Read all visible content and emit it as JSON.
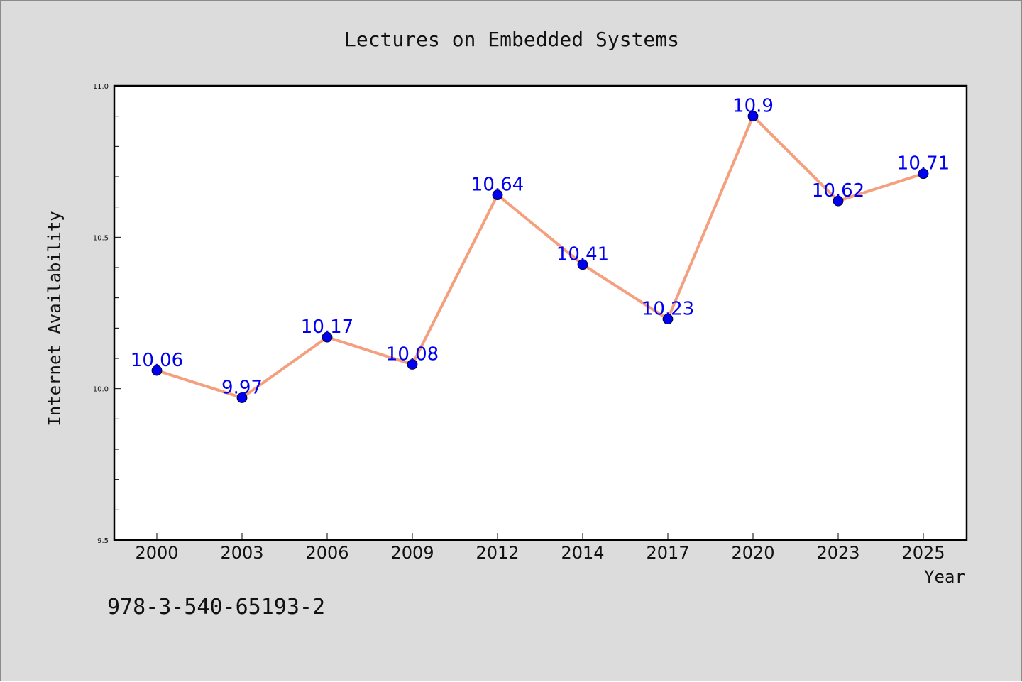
{
  "chart_data": {
    "type": "line",
    "title": "Lectures on Embedded Systems",
    "xlabel": "Year",
    "ylabel": "Internet Availability",
    "categories": [
      "2000",
      "2003",
      "2006",
      "2009",
      "2012",
      "2014",
      "2017",
      "2020",
      "2023",
      "2025"
    ],
    "series": [
      {
        "values": [
          10.06,
          9.97,
          10.17,
          10.08,
          10.64,
          10.41,
          10.23,
          10.9,
          10.62,
          10.71
        ],
        "data_labels": [
          "10.06",
          "9.97",
          "10.17",
          "10.08",
          "10.64",
          "10.41",
          "10.23",
          "10.9",
          "10.62",
          "10.71"
        ],
        "line_color": "#f4a07e",
        "marker_color": "#0000ee"
      }
    ],
    "ylim": [
      9.5,
      11.0
    ],
    "yticks": [
      9.5,
      10.0,
      10.5,
      11.0
    ],
    "ytick_labels": [
      "9.5",
      "10.0",
      "10.5",
      "11.0"
    ],
    "grid": false,
    "legend": "none"
  },
  "footnote": "978-3-540-65193-2",
  "colors": {
    "background": "#dcdcdc",
    "plot_area": "#ffffff",
    "axis": "#000000"
  }
}
